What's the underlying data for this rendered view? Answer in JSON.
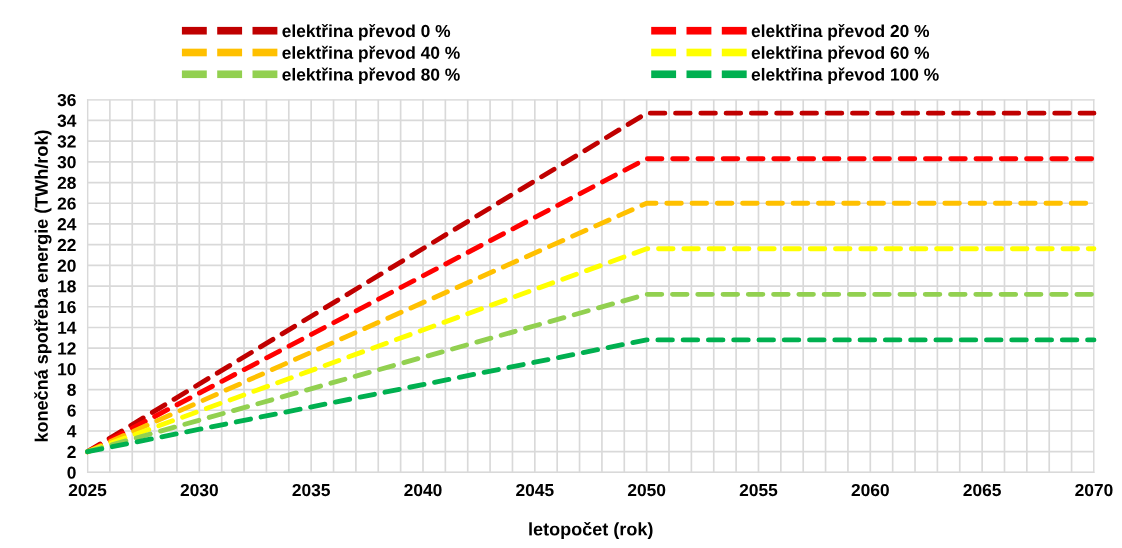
{
  "chart_data": {
    "type": "line",
    "xlabel": "letopočet (rok)",
    "ylabel": "konečná spotřeba energie (TWh/rok)",
    "x": [
      2025,
      2050,
      2070
    ],
    "series": [
      {
        "name": "elektřina převod 0 %",
        "color": "#c00000",
        "values": [
          2,
          34.7,
          34.7
        ]
      },
      {
        "name": "elektřina převod 20 %",
        "color": "#ff0000",
        "values": [
          2,
          30.3,
          30.3
        ]
      },
      {
        "name": "elektřina převod 40 %",
        "color": "#ffc000",
        "values": [
          2,
          26.0,
          26.0
        ]
      },
      {
        "name": "elektřina převod 60 %",
        "color": "#ffff00",
        "values": [
          2,
          21.6,
          21.6
        ]
      },
      {
        "name": "elektřina převod 80 %",
        "color": "#92d050",
        "values": [
          2,
          17.2,
          17.2
        ]
      },
      {
        "name": "elektřina převod 100 %",
        "color": "#00b050",
        "values": [
          2,
          12.8,
          12.8
        ]
      }
    ],
    "xlim": [
      2025,
      2070
    ],
    "xticks": [
      2025,
      {
        "value": 2026,
        "label": null
      },
      {
        "value": 2027,
        "label": null
      },
      {
        "value": 2028,
        "label": null
      },
      {
        "value": 2029,
        "label": null
      },
      2030,
      {
        "value": 2031,
        "label": null
      },
      {
        "value": 2032,
        "label": null
      },
      {
        "value": 2033,
        "label": null
      },
      {
        "value": 2034,
        "label": null
      },
      2035,
      {
        "value": 2036,
        "label": null
      },
      {
        "value": 2037,
        "label": null
      },
      {
        "value": 2038,
        "label": null
      },
      {
        "value": 2039,
        "label": null
      },
      2040,
      {
        "value": 2041,
        "label": null
      },
      {
        "value": 2042,
        "label": null
      },
      {
        "value": 2043,
        "label": null
      },
      {
        "value": 2044,
        "label": null
      },
      2045,
      {
        "value": 2046,
        "label": null
      },
      {
        "value": 2047,
        "label": null
      },
      {
        "value": 2048,
        "label": null
      },
      {
        "value": 2049,
        "label": null
      },
      2050,
      {
        "value": 2051,
        "label": null
      },
      {
        "value": 2052,
        "label": null
      },
      {
        "value": 2053,
        "label": null
      },
      {
        "value": 2054,
        "label": null
      },
      2055,
      {
        "value": 2056,
        "label": null
      },
      {
        "value": 2057,
        "label": null
      },
      {
        "value": 2058,
        "label": null
      },
      {
        "value": 2059,
        "label": null
      },
      2060,
      {
        "value": 2061,
        "label": null
      },
      {
        "value": 2062,
        "label": null
      },
      {
        "value": 2063,
        "label": null
      },
      {
        "value": 2064,
        "label": null
      },
      2065,
      {
        "value": 2066,
        "label": null
      },
      {
        "value": 2067,
        "label": null
      },
      {
        "value": 2068,
        "label": null
      },
      {
        "value": 2069,
        "label": null
      },
      2070
    ],
    "ylim": [
      0,
      36
    ],
    "yticks": [
      0,
      2,
      4,
      6,
      8,
      10,
      12,
      14,
      16,
      18,
      20,
      22,
      24,
      26,
      28,
      30,
      32,
      34,
      36
    ],
    "grid": true,
    "legend": "top",
    "marker": "none",
    "line_style": "dashed"
  }
}
